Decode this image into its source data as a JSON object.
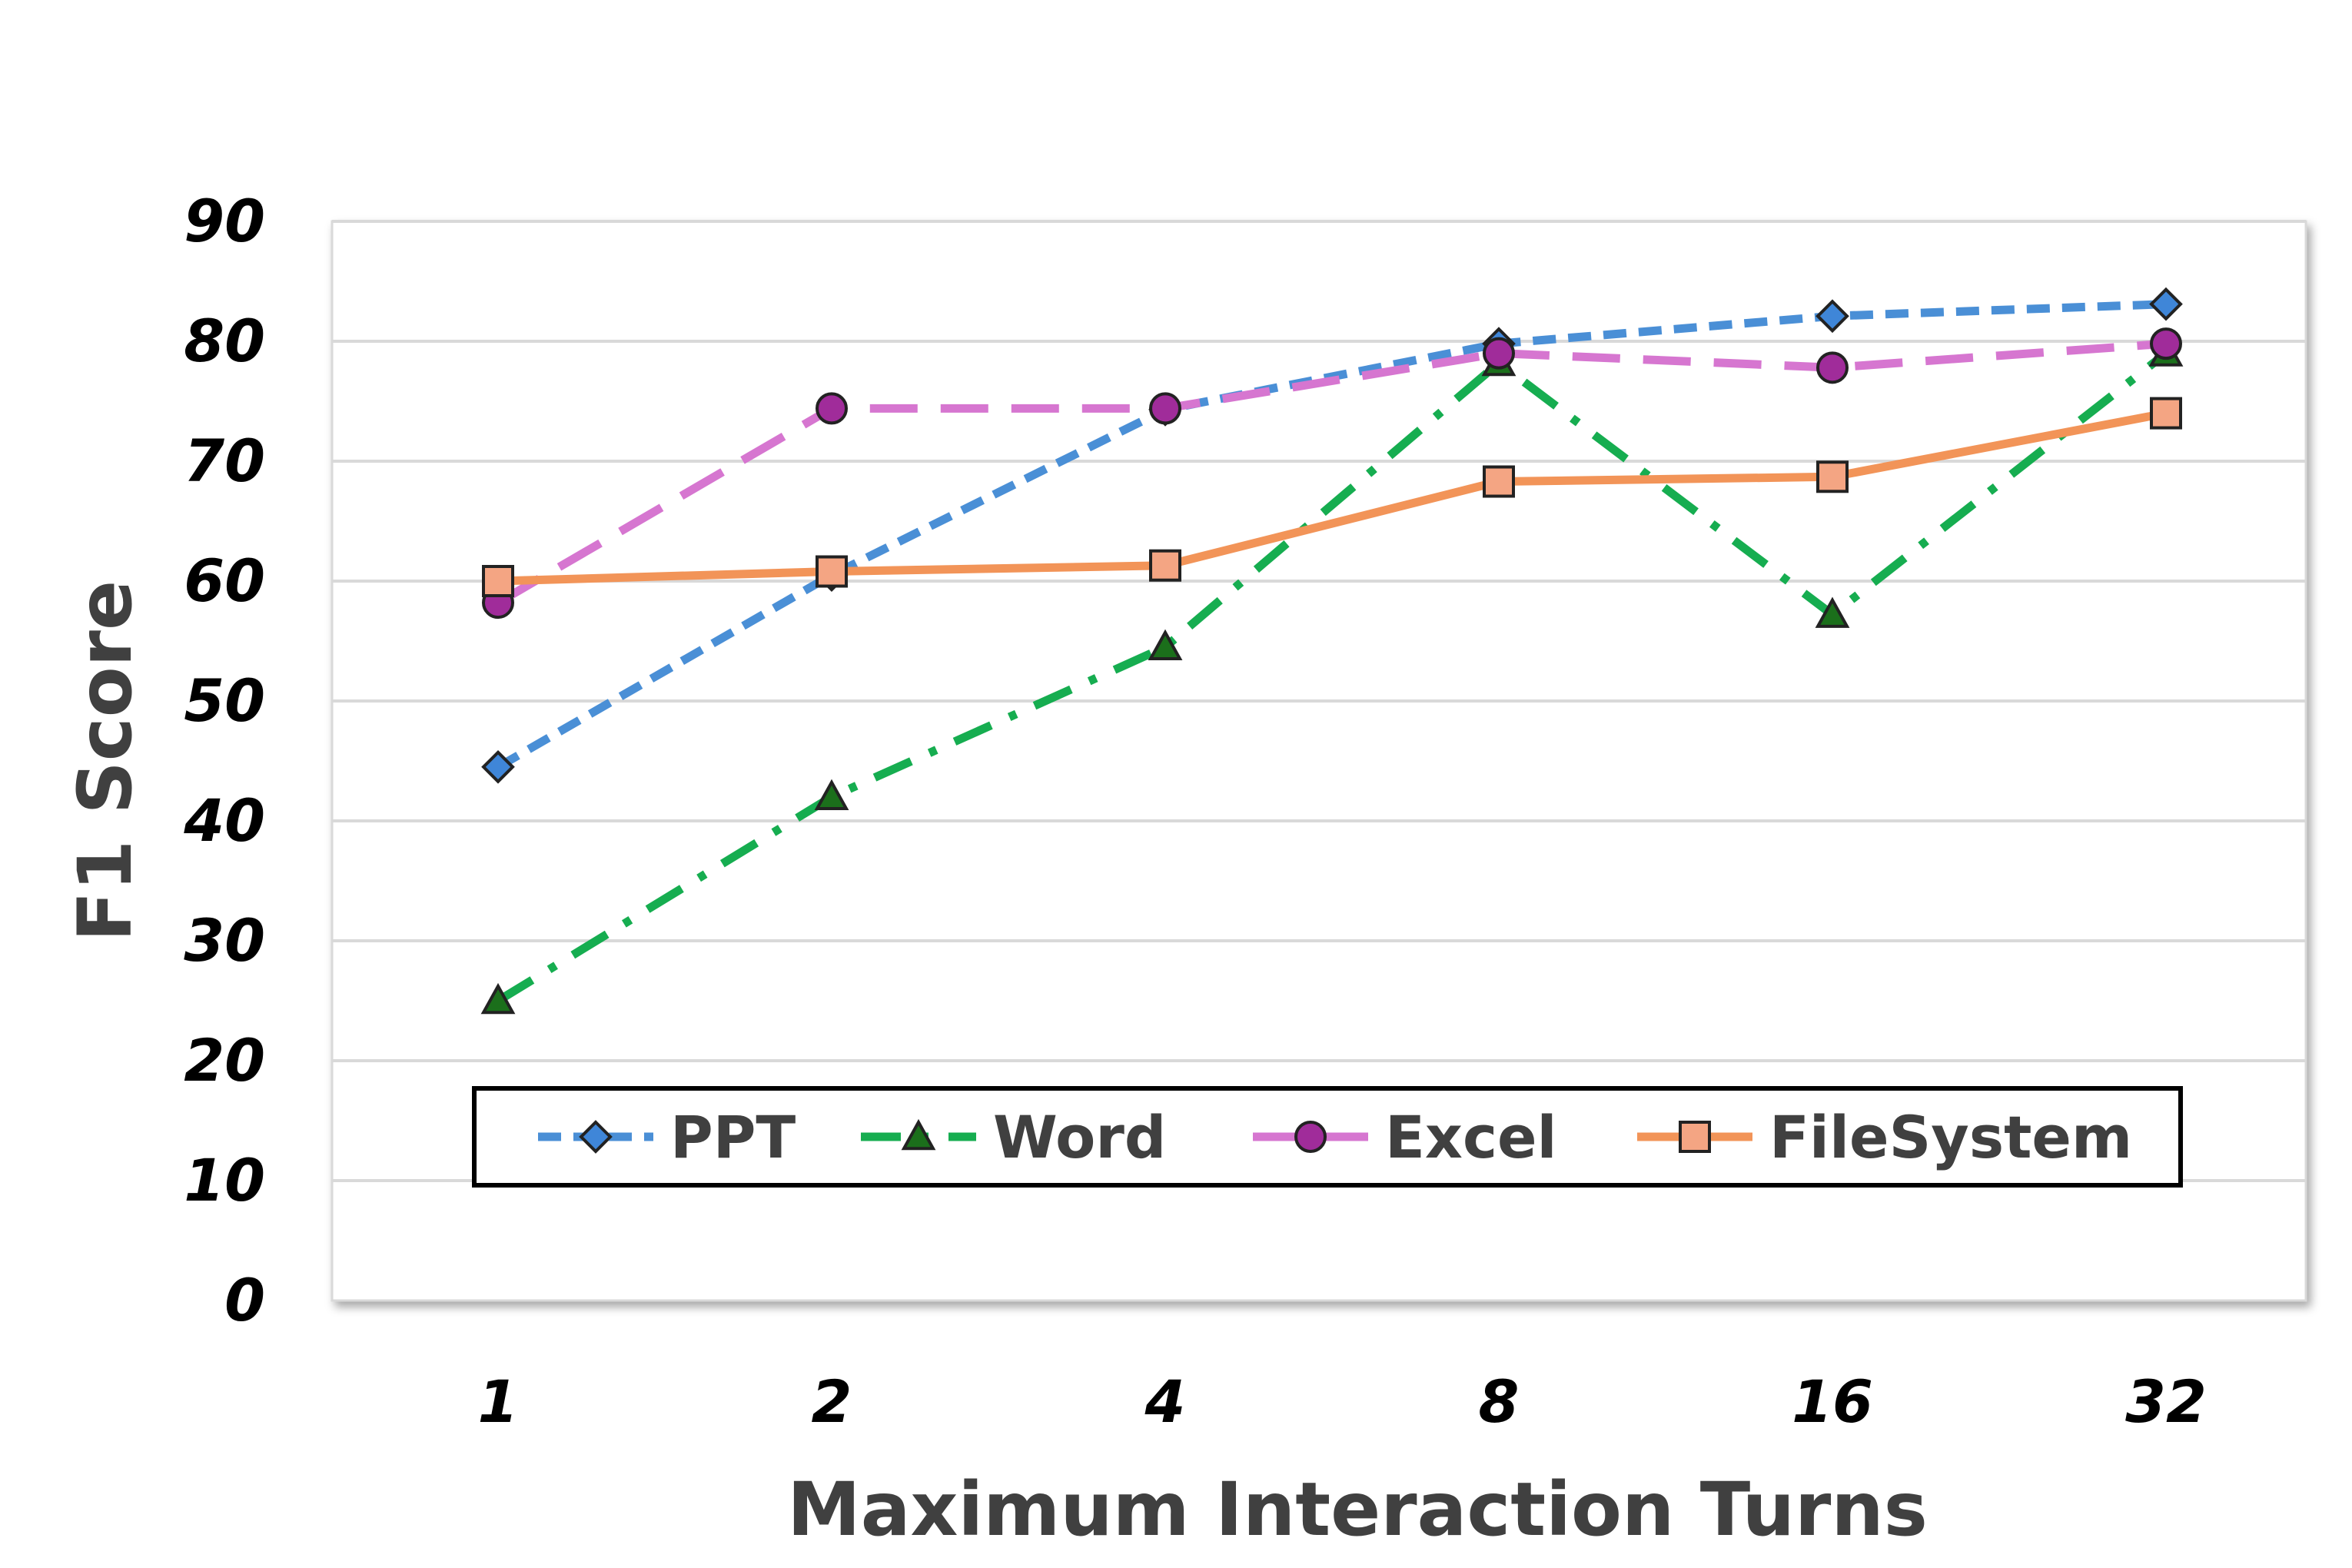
{
  "chart_data": {
    "type": "line",
    "title": "",
    "xlabel": "Maximum Interaction Turns",
    "ylabel": "F1 Score",
    "categories": [
      "1",
      "2",
      "4",
      "8",
      "16",
      "32"
    ],
    "yticks": [
      "0",
      "10",
      "20",
      "30",
      "40",
      "50",
      "60",
      "70",
      "80",
      "90"
    ],
    "ylim": [
      0,
      90
    ],
    "grid": true,
    "legend_position": "bottom-center",
    "series": [
      {
        "name": "PPT",
        "values": [
          44.5,
          60.5,
          74.3,
          79.8,
          82.1,
          83.1
        ],
        "color": "#4a8fd6",
        "marker": "diamond",
        "marker_fill": "#3f86d8",
        "line_style": "dashed"
      },
      {
        "name": "Word",
        "values": [
          25.0,
          42.0,
          54.5,
          78.2,
          57.2,
          79.0
        ],
        "color": "#16ad50",
        "marker": "triangle",
        "marker_fill": "#1b6f1b",
        "line_style": "dash-dot"
      },
      {
        "name": "Excel",
        "values": [
          58.2,
          74.4,
          74.4,
          79.0,
          77.8,
          79.8
        ],
        "color": "#d676d0",
        "marker": "circle",
        "marker_fill": "#a02c9a",
        "line_style": "long-dash"
      },
      {
        "name": "FileSystem",
        "values": [
          60.0,
          60.8,
          61.3,
          68.3,
          68.7,
          74.0
        ],
        "color": "#f29458",
        "marker": "square",
        "marker_fill": "#f4a583",
        "line_style": "solid"
      }
    ]
  }
}
